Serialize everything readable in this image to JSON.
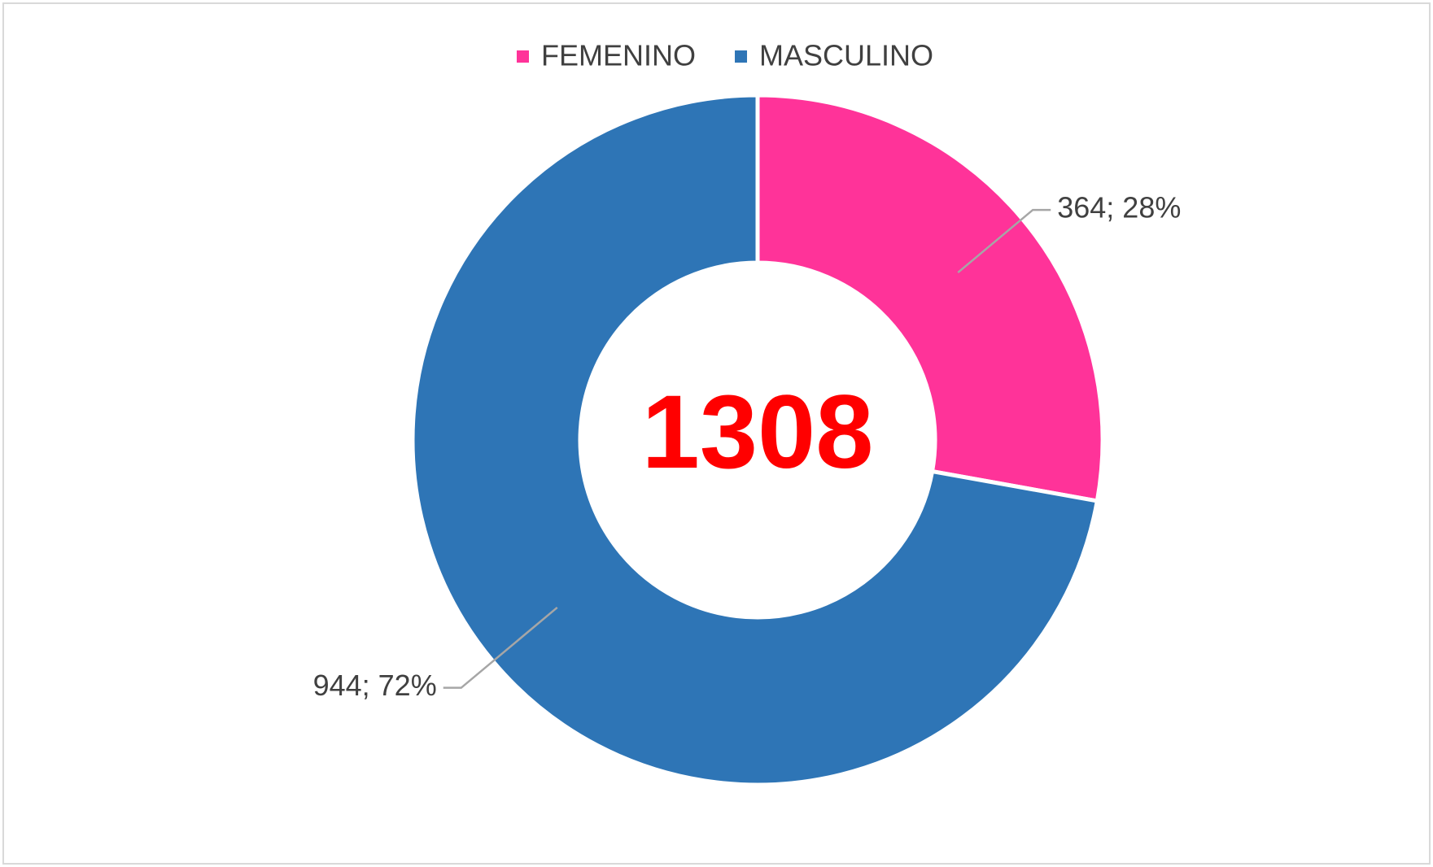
{
  "chart_data": {
    "type": "donut",
    "categories": [
      "FEMENINO",
      "MASCULINO"
    ],
    "values": [
      364,
      944
    ],
    "value_labels": [
      "364; 28%",
      "944; 72%"
    ],
    "colors": [
      "#FF3399",
      "#2E75B6"
    ],
    "total": 1308,
    "legend": "top"
  }
}
